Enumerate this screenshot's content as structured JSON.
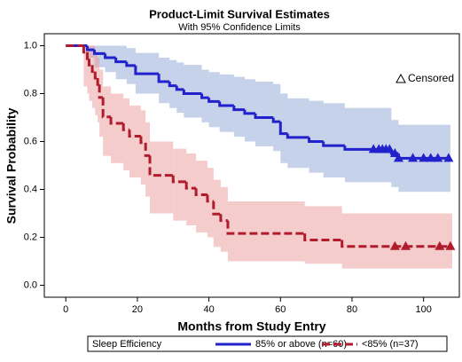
{
  "chart_data": {
    "type": "survival",
    "title": "Product-Limit Survival Estimates",
    "subtitle": "With 95% Confidence Limits",
    "x_label": "Months from Study Entry",
    "y_label": "Survival Probability",
    "legend_title": "Sleep Efficiency",
    "censored_label": "Censored",
    "xlim": [
      -6,
      110
    ],
    "ylim": [
      -0.05,
      1.05
    ],
    "xticks": [
      0,
      20,
      40,
      60,
      80,
      100
    ],
    "yticks": [
      {
        "value": 0,
        "label": "0.0"
      },
      0.2,
      0.4,
      0.6,
      0.8,
      {
        "value": 1,
        "label": "1.0"
      }
    ],
    "series": [
      {
        "name": "85% or above (n=60)",
        "color": "#2222cc",
        "band_color": "#8ea3d6",
        "dashed": false,
        "time": [
          0,
          6,
          8,
          11,
          14,
          17,
          19.5,
          26,
          29,
          31,
          33,
          38,
          40,
          43,
          47,
          50,
          53,
          58,
          60,
          62,
          68,
          72,
          78,
          91,
          93
        ],
        "survival": [
          1,
          0.983,
          0.967,
          0.95,
          0.933,
          0.917,
          0.883,
          0.85,
          0.833,
          0.817,
          0.8,
          0.783,
          0.767,
          0.75,
          0.733,
          0.717,
          0.7,
          0.683,
          0.633,
          0.617,
          0.6,
          0.583,
          0.567,
          0.55,
          0.53
        ],
        "lower": [
          1,
          0.95,
          0.91,
          0.89,
          0.86,
          0.84,
          0.8,
          0.76,
          0.74,
          0.72,
          0.7,
          0.68,
          0.66,
          0.64,
          0.62,
          0.6,
          0.58,
          0.56,
          0.51,
          0.49,
          0.47,
          0.45,
          0.43,
          0.41,
          0.39
        ],
        "upper": [
          1,
          1,
          1,
          1,
          1,
          0.99,
          0.97,
          0.95,
          0.94,
          0.93,
          0.92,
          0.9,
          0.89,
          0.88,
          0.87,
          0.86,
          0.85,
          0.84,
          0.8,
          0.78,
          0.77,
          0.76,
          0.74,
          0.69,
          0.67
        ],
        "end_time": 107.5,
        "censored_time": [
          86,
          87.5,
          88.5,
          89.5,
          90.5,
          92,
          93,
          97,
          100,
          102,
          104,
          107
        ],
        "censored_survival": [
          0.567,
          0.567,
          0.567,
          0.567,
          0.567,
          0.55,
          0.53,
          0.53,
          0.53,
          0.53,
          0.53,
          0.53
        ]
      },
      {
        "name": "<85% (n=37)",
        "color": "#b01c2c",
        "band_color": "#eb9a9a",
        "dashed": true,
        "time": [
          0,
          5,
          6,
          6.5,
          7.4,
          8.2,
          8.9,
          9.4,
          10.4,
          12.6,
          16.1,
          17.8,
          21,
          22.3,
          23.5,
          30,
          33.7,
          36.4,
          39.6,
          41.3,
          43.3,
          45.3,
          66.8,
          77.2
        ],
        "survival": [
          1,
          0.973,
          0.946,
          0.919,
          0.892,
          0.865,
          0.838,
          0.784,
          0.703,
          0.676,
          0.649,
          0.622,
          0.595,
          0.541,
          0.459,
          0.432,
          0.405,
          0.378,
          0.351,
          0.297,
          0.27,
          0.216,
          0.189,
          0.162
        ],
        "lower": [
          1,
          0.83,
          0.8,
          0.77,
          0.74,
          0.71,
          0.68,
          0.62,
          0.54,
          0.51,
          0.48,
          0.45,
          0.42,
          0.37,
          0.3,
          0.27,
          0.25,
          0.22,
          0.2,
          0.16,
          0.14,
          0.1,
          0.09,
          0.07
        ],
        "upper": [
          1,
          1,
          1,
          1,
          1,
          0.97,
          0.95,
          0.9,
          0.83,
          0.8,
          0.78,
          0.75,
          0.73,
          0.68,
          0.6,
          0.57,
          0.55,
          0.52,
          0.49,
          0.44,
          0.41,
          0.35,
          0.33,
          0.3
        ],
        "end_time": 108,
        "censored_time": [
          92,
          95,
          104.5,
          107.5
        ],
        "censored_survival": [
          0.162,
          0.162,
          0.162,
          0.162
        ]
      }
    ]
  }
}
